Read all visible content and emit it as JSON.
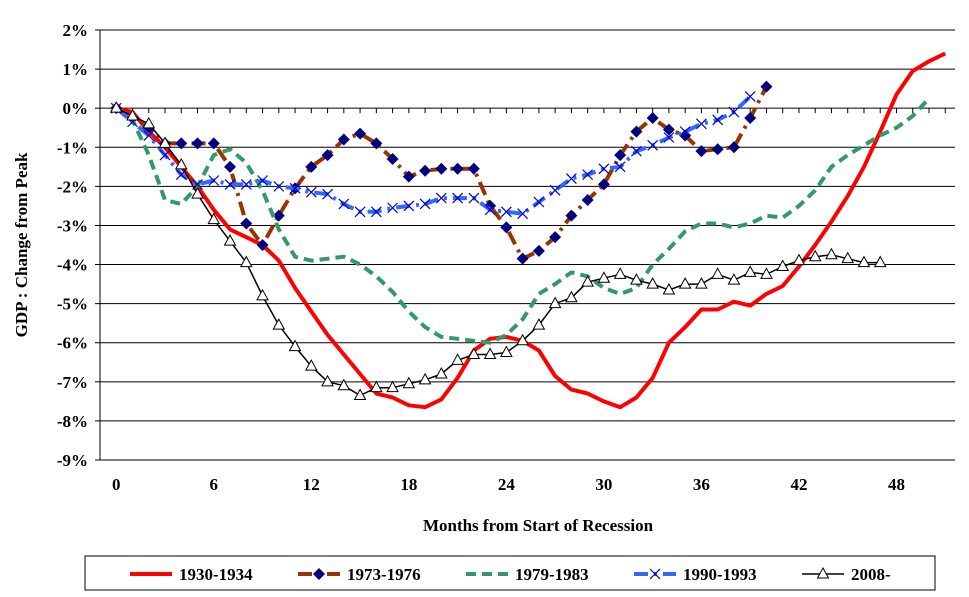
{
  "chart_data": {
    "type": "line",
    "title": "",
    "xlabel": "Months from Start of Recession",
    "ylabel": "GDP : Change from Peak",
    "xlim": [
      -1,
      51.6
    ],
    "ylim": [
      -9,
      2
    ],
    "x_ticks": [
      0,
      6,
      12,
      18,
      24,
      30,
      36,
      42,
      48
    ],
    "y_ticks": [
      "2%",
      "1%",
      "0%",
      "-1%",
      "-2%",
      "-3%",
      "-4%",
      "-5%",
      "-6%",
      "-7%",
      "-8%",
      "-9%"
    ],
    "y_tick_values": [
      2,
      1,
      0,
      -1,
      -2,
      -3,
      -4,
      -5,
      -6,
      -7,
      -8,
      -9
    ],
    "grid": "horizontal",
    "legend_position": "bottom",
    "series": [
      {
        "name": "1930-1934",
        "color": "#FF0000",
        "style": "solid-thick",
        "marker": "none",
        "values": [
          0,
          -0.1,
          -0.6,
          -1.0,
          -1.5,
          -2.0,
          -2.6,
          -3.1,
          -3.3,
          -3.5,
          -3.9,
          -4.6,
          -5.2,
          -5.8,
          -6.3,
          -6.8,
          -7.3,
          -7.4,
          -7.6,
          -7.65,
          -7.45,
          -6.9,
          -6.2,
          -5.9,
          -5.85,
          -5.95,
          -6.2,
          -6.85,
          -7.2,
          -7.3,
          -7.5,
          -7.65,
          -7.4,
          -6.9,
          -6.0,
          -5.6,
          -5.15,
          -5.15,
          -4.95,
          -5.05,
          -4.75,
          -4.55,
          -4.05,
          -3.5,
          -2.9,
          -2.25,
          -1.5,
          -0.6,
          0.35,
          0.95,
          1.2,
          1.4
        ]
      },
      {
        "name": "1973-1976",
        "color": "#993300",
        "marker_color": "#000080",
        "style": "dash-dot",
        "marker": "diamond",
        "values": [
          0,
          -0.25,
          -0.5,
          -0.9,
          -0.9,
          -0.9,
          -0.9,
          -1.5,
          -2.95,
          -3.5,
          -2.75,
          -2.05,
          -1.5,
          -1.2,
          -0.8,
          -0.65,
          -0.9,
          -1.3,
          -1.75,
          -1.6,
          -1.55,
          -1.55,
          -1.55,
          -2.5,
          -3.05,
          -3.85,
          -3.65,
          -3.3,
          -2.75,
          -2.35,
          -1.95,
          -1.2,
          -0.6,
          -0.25,
          -0.55,
          -0.7,
          -1.1,
          -1.05,
          -1.0,
          -0.25,
          0.55
        ]
      },
      {
        "name": "1979-1983",
        "color": "#339966",
        "style": "dashed",
        "marker": "none",
        "values": [
          0,
          -0.3,
          -1.2,
          -2.35,
          -2.45,
          -2.0,
          -1.2,
          -1.05,
          -1.4,
          -2.1,
          -3.1,
          -3.8,
          -3.9,
          -3.85,
          -3.8,
          -4.0,
          -4.3,
          -4.7,
          -5.2,
          -5.6,
          -5.85,
          -5.9,
          -5.95,
          -6.0,
          -5.8,
          -5.4,
          -4.75,
          -4.5,
          -4.2,
          -4.3,
          -4.6,
          -4.75,
          -4.6,
          -4.0,
          -3.6,
          -3.15,
          -2.95,
          -2.95,
          -3.05,
          -2.95,
          -2.75,
          -2.8,
          -2.5,
          -2.1,
          -1.5,
          -1.2,
          -0.95,
          -0.7,
          -0.5,
          -0.2,
          0.25
        ]
      },
      {
        "name": "1990-1993",
        "color": "#3366FF",
        "style": "dash-dot",
        "marker": "x",
        "values": [
          0,
          -0.35,
          -0.7,
          -1.2,
          -1.7,
          -1.95,
          -1.85,
          -1.95,
          -1.95,
          -1.85,
          -2.0,
          -2.05,
          -2.15,
          -2.2,
          -2.45,
          -2.65,
          -2.65,
          -2.55,
          -2.5,
          -2.45,
          -2.3,
          -2.3,
          -2.3,
          -2.6,
          -2.65,
          -2.7,
          -2.4,
          -2.1,
          -1.8,
          -1.7,
          -1.55,
          -1.5,
          -1.1,
          -0.95,
          -0.75,
          -0.6,
          -0.4,
          -0.3,
          -0.1,
          0.3
        ]
      },
      {
        "name": "2008-",
        "color": "#000000",
        "style": "solid-thin",
        "marker": "triangle",
        "values": [
          0,
          -0.2,
          -0.4,
          -0.9,
          -1.45,
          -2.2,
          -2.85,
          -3.4,
          -3.95,
          -4.8,
          -5.55,
          -6.1,
          -6.6,
          -7.0,
          -7.1,
          -7.35,
          -7.15,
          -7.15,
          -7.05,
          -6.95,
          -6.8,
          -6.45,
          -6.3,
          -6.3,
          -6.25,
          -5.95,
          -5.55,
          -5.0,
          -4.85,
          -4.45,
          -4.35,
          -4.25,
          -4.4,
          -4.5,
          -4.65,
          -4.5,
          -4.5,
          -4.25,
          -4.4,
          -4.2,
          -4.25,
          -4.05,
          -3.9,
          -3.8,
          -3.75,
          -3.85,
          -3.95,
          -3.95
        ]
      }
    ]
  }
}
